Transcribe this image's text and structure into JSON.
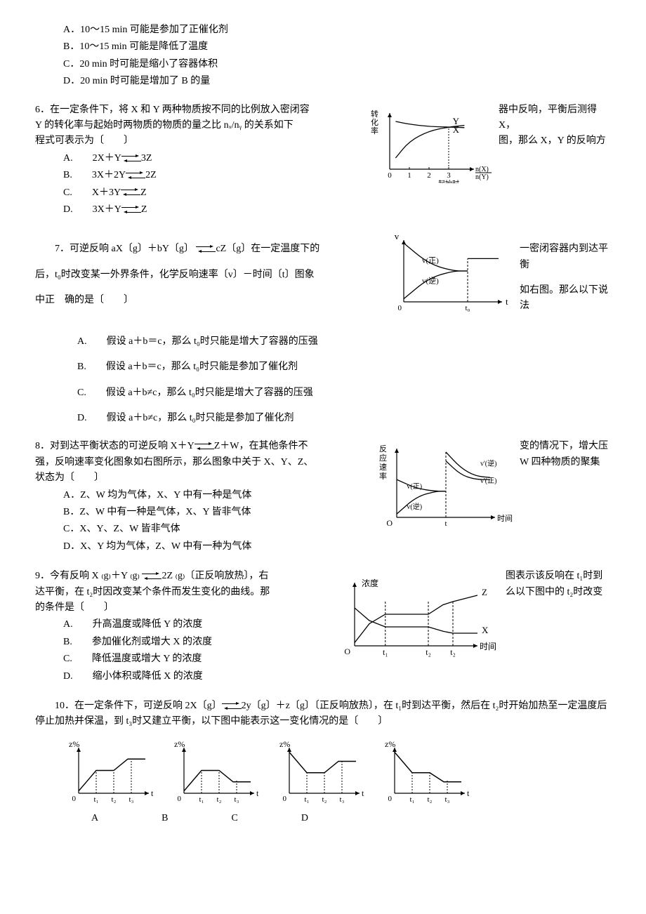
{
  "q5_partial": {
    "opts": {
      "A": "A．10～15 min 可能是参加了正催化剂",
      "B": "B．10～15 min 可能是降低了温度",
      "C": "C．20 min 时可能是缩小了容器体积",
      "D": "D．20 min 时可能是增加了 B 的量"
    }
  },
  "q6": {
    "stem_left": "6．在一定条件下，将 X 和 Y 两种物质按不同的比例放入密闭容",
    "stem_left2": "Y 的转化率与起始时两物质的物质的量之比 nₓ/nᵧ 的关系如下",
    "stem_left3": "程式可表示为〔　　〕",
    "stem_right": "器中反响，平衡后测得 X，",
    "stem_right2": "图，那么 X，Y 的反响方",
    "opts": {
      "A": "A.　　2X＋Y",
      "A_tail": "3Z",
      "B": "B.　　3X＋2Y",
      "B_tail": "2Z",
      "C": "C.　　X＋3Y",
      "C_tail": "Z",
      "D": "D.　　3X＋Y",
      "D_tail": "Z"
    },
    "fig": {
      "xlabel1": "起始时",
      "xlabel2": "n(X)",
      "xlabel3": "n(Y)",
      "ylabel": "转化率",
      "y_label_text": "Y",
      "x_label_text": "X",
      "xticks": [
        "0",
        "1",
        "2",
        "3"
      ],
      "cross_x": 3,
      "curve_X": [
        [
          0.3,
          0.2
        ],
        [
          1,
          0.5
        ],
        [
          2,
          0.68
        ],
        [
          3,
          0.75
        ],
        [
          3.8,
          0.78
        ]
      ],
      "curve_Y": [
        [
          0.3,
          0.85
        ],
        [
          1,
          0.8
        ],
        [
          2,
          0.76
        ],
        [
          3,
          0.75
        ],
        [
          3.8,
          0.74
        ]
      ],
      "stroke": "#000000",
      "background": "#ffffff"
    }
  },
  "q7": {
    "stem_left": "　　7．可逆反响 aX〔g〕＋bY〔g〕",
    "stem_left_mid": "cZ〔g〕在一定温度下的",
    "stem_left2": "后，t₀时改变某一外界条件，化学反响速率〔v〕－时间〔t〕图象",
    "stem_left3": "中正　确的是〔　　〕",
    "stem_right": "一密闭容器内到达平衡",
    "stem_right2": "如右图。那么以下说法",
    "opts": {
      "A": "A.　　假设 a＋b＝c，那么 t₀时只能是增大了容器的压强",
      "B": "B.　　假设 a＋b＝c，那么 t₀时只能是参加了催化剂",
      "C": "C.　　假设 a＋b≠c，那么 t₀时只能是增大了容器的压强",
      "D": "D.　　假设 a＋b≠c，那么 t₀时只能是参加了催化剂"
    },
    "fig": {
      "ylabel": "v",
      "xlabel": "t",
      "t0": "t₀",
      "v_for": "v(正)",
      "v_rev": "v(逆)",
      "curve_for": [
        [
          0,
          0.95
        ],
        [
          0.25,
          0.62
        ],
        [
          0.5,
          0.5
        ],
        [
          0.65,
          0.5
        ]
      ],
      "curve_rev": [
        [
          0,
          0.05
        ],
        [
          0.25,
          0.38
        ],
        [
          0.5,
          0.5
        ],
        [
          0.65,
          0.5
        ]
      ],
      "after_level": 0.7,
      "t0_x": 0.65,
      "stroke": "#000000"
    }
  },
  "q8": {
    "stem_left": "8．对到达平衡状态的可逆反响 X＋Y",
    "stem_left_mid": "Z＋W，在其他条件不",
    "stem_left2": "强，反响速率变化图象如右图所示，那么图象中关于 X、Y、Z、",
    "stem_left3": "状态为〔　　〕",
    "stem_right": "变的情况下，增大压",
    "stem_right2": "W 四种物质的聚集",
    "opts": {
      "A": "A．Z、W 均为气体，X、Y 中有一种是气体",
      "B": "B．Z、W 中有一种是气体，X、Y 皆非气体",
      "C": "C．X、Y、Z、W 皆非气体",
      "D": "D．X、Y 均为气体，Z、W 中有一种为气体"
    },
    "fig": {
      "ylabel": "反应速率",
      "xlabel": "时间",
      "t": "t",
      "v_for": "v(正)",
      "v_rev": "v(逆)",
      "v_for2": "v'(正)",
      "v_rev2": "v'(逆)",
      "before_for": [
        [
          0,
          0.05
        ],
        [
          0.2,
          0.3
        ],
        [
          0.4,
          0.38
        ],
        [
          0.5,
          0.38
        ]
      ],
      "before_rev": [
        [
          0,
          0.55
        ],
        [
          0.2,
          0.42
        ],
        [
          0.4,
          0.38
        ],
        [
          0.5,
          0.38
        ]
      ],
      "after_for": [
        [
          0.5,
          0.82
        ],
        [
          0.65,
          0.62
        ],
        [
          0.8,
          0.55
        ],
        [
          0.95,
          0.55
        ]
      ],
      "after_rev": [
        [
          0.5,
          0.95
        ],
        [
          0.65,
          0.72
        ],
        [
          0.8,
          0.6
        ],
        [
          0.95,
          0.58
        ]
      ],
      "stroke": "#000000"
    }
  },
  "q9": {
    "stem_left": "9．今有反响 X ₍g₎＋Y ₍g₎",
    "stem_left_mid": "2Z ₍g₎〔正反响放热〕，右",
    "stem_left2": "达平衡，在 t₂时因改变某个条件而发生变化的曲线。那",
    "stem_left3": "的条件是〔　　〕",
    "stem_right": "图表示该反响在 t₁时到",
    "stem_right2": "么以下图中的 t₂时改变",
    "opts": {
      "A": "A.　　升高温度或降低 Y 的浓度",
      "B": "B.　　参加催化剂或增大 X 的浓度",
      "C": "C.　　降低温度或增大 Y 的浓度",
      "D": "D.　　缩小体积或降低 X 的浓度"
    },
    "fig": {
      "ylabel": "浓度",
      "xlabel": "时间",
      "t1": "t₁",
      "t2a": "t₂",
      "t2b": "t₂",
      "Z": "Z",
      "X": "X",
      "Z_curve": [
        [
          0,
          0.05
        ],
        [
          0.25,
          0.5
        ],
        [
          0.25,
          0.5
        ],
        [
          0.6,
          0.5
        ],
        [
          0.6,
          0.5
        ],
        [
          0.8,
          0.7
        ],
        [
          0.8,
          0.7
        ],
        [
          1,
          0.8
        ]
      ],
      "X_curve": [
        [
          0,
          0.6
        ],
        [
          0.25,
          0.3
        ],
        [
          0.25,
          0.3
        ],
        [
          0.6,
          0.3
        ],
        [
          0.6,
          0.3
        ],
        [
          0.8,
          0.2
        ],
        [
          0.8,
          0.2
        ],
        [
          1,
          0.2
        ]
      ],
      "stroke": "#000000"
    }
  },
  "q10": {
    "stem": "　　10．在一定条件下，可逆反响 2X〔g〕",
    "stem_mid": "2y〔g〕＋z〔g〕〔正反响放热〕，在 t₁时到达平衡，然后在 t₂时开始加热至一定温度后停止加热并保温，到 t₃时又建立平衡，以下图中能表示这一变化情况的是〔　　〕",
    "opts": {
      "A": "A",
      "B": "B",
      "C": "C",
      "D": "D"
    },
    "figs": {
      "ylabel": "z%",
      "xlabel": "t",
      "ticks": [
        "t₁",
        "t₂",
        "t₃"
      ],
      "A": [
        [
          0,
          0.05
        ],
        [
          0.25,
          0.5
        ],
        [
          0.25,
          0.5
        ],
        [
          0.5,
          0.5
        ],
        [
          0.5,
          0.5
        ],
        [
          0.7,
          0.75
        ],
        [
          0.75,
          0.75
        ],
        [
          0.95,
          0.75
        ]
      ],
      "B": [
        [
          0,
          0.05
        ],
        [
          0.25,
          0.5
        ],
        [
          0.25,
          0.5
        ],
        [
          0.5,
          0.5
        ],
        [
          0.5,
          0.5
        ],
        [
          0.7,
          0.25
        ],
        [
          0.75,
          0.25
        ],
        [
          0.95,
          0.25
        ]
      ],
      "C": [
        [
          0,
          0.9
        ],
        [
          0.25,
          0.45
        ],
        [
          0.25,
          0.45
        ],
        [
          0.5,
          0.45
        ],
        [
          0.5,
          0.45
        ],
        [
          0.7,
          0.7
        ],
        [
          0.75,
          0.7
        ],
        [
          0.95,
          0.7
        ]
      ],
      "D": [
        [
          0,
          0.9
        ],
        [
          0.25,
          0.45
        ],
        [
          0.25,
          0.45
        ],
        [
          0.5,
          0.45
        ],
        [
          0.5,
          0.45
        ],
        [
          0.7,
          0.25
        ],
        [
          0.75,
          0.25
        ],
        [
          0.95,
          0.25
        ]
      ],
      "stroke": "#000000"
    }
  }
}
